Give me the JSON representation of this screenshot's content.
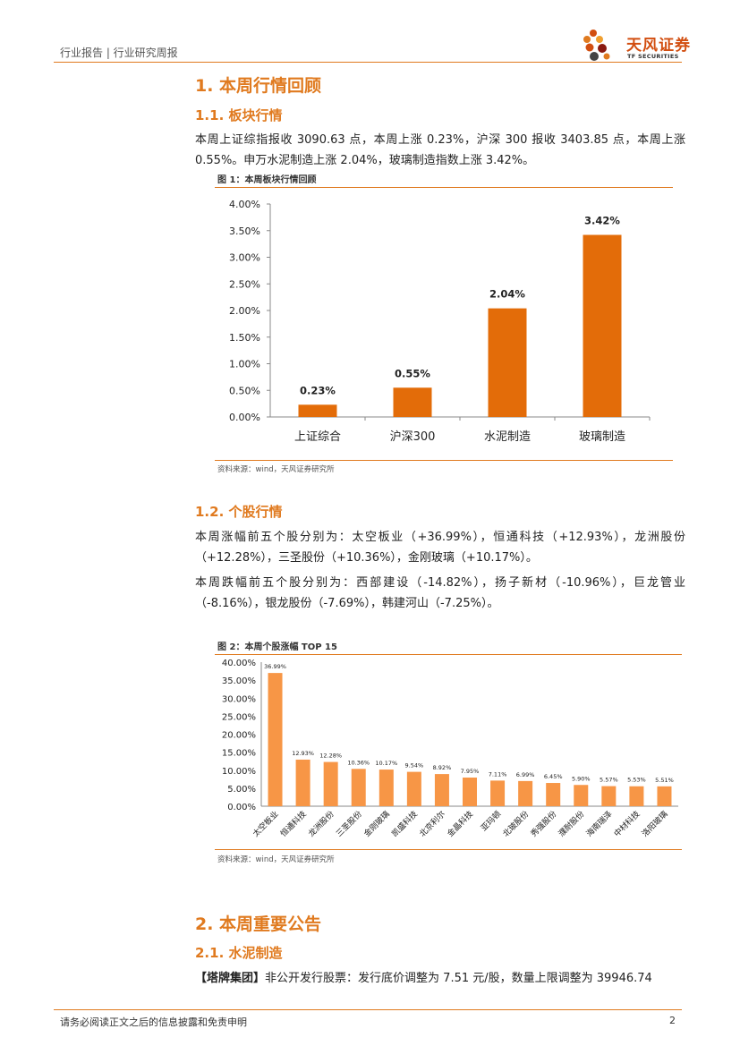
{
  "header": {
    "left": "行业报告 | 行业研究周报",
    "logo_cn": "天风证券",
    "logo_en": "TF SECURITIES"
  },
  "section1": {
    "title": "1. 本周行情回顾",
    "sub1_title": "1.1. 板块行情",
    "sub1_text": "本周上证综指报收 3090.63 点，本周上涨 0.23%，沪深 300 报收 3403.85 点，本周上涨 0.55%。申万水泥制造上涨 2.04%，玻璃制造指数上涨 3.42%。",
    "fig1_title": "图 1：本周板块行情回顾",
    "fig1_source": "资料来源：wind，天风证券研究所",
    "sub2_title": "1.2. 个股行情",
    "sub2_text_a": "本周涨幅前五个股分别为：太空板业（+36.99%），恒通科技（+12.93%），龙洲股份（+12.28%），三圣股份（+10.36%），金刚玻璃（+10.17%）。",
    "sub2_text_b": "本周跌幅前五个股分别为：西部建设（-14.82%），扬子新材（-10.96%），巨龙管业（-8.16%），银龙股份（-7.69%），韩建河山（-7.25%）。",
    "fig2_title": "图 2：本周个股涨幅 TOP 15",
    "fig2_source": "资料来源：wind，天风证券研究所"
  },
  "section2": {
    "title": "2. 本周重要公告",
    "sub1_title": "2.1. 水泥制造",
    "ann_bracket_open": "【",
    "ann_company": "塔牌集团",
    "ann_bracket_close": "】",
    "ann_text": "非公开发行股票：发行底价调整为 7.51 元/股，数量上限调整为 39946.74"
  },
  "footer": {
    "disclaimer": "请务必阅读正文之后的信息披露和免责申明",
    "page": "2"
  },
  "colors": {
    "accent": "#E07A1F",
    "bar1": "#E36C09",
    "bar2": "#F79646"
  },
  "chart_data": [
    {
      "type": "bar",
      "title": "本周板块行情回顾",
      "categories": [
        "上证综合",
        "沪深300",
        "水泥制造",
        "玻璃制造"
      ],
      "values": [
        0.23,
        0.55,
        2.04,
        3.42
      ],
      "value_labels": [
        "0.23%",
        "0.55%",
        "2.04%",
        "3.42%"
      ],
      "yticks": [
        "0.00%",
        "0.50%",
        "1.00%",
        "1.50%",
        "2.00%",
        "2.50%",
        "3.00%",
        "3.50%",
        "4.00%"
      ],
      "ylim": [
        0,
        4
      ],
      "xlabel": "",
      "ylabel": ""
    },
    {
      "type": "bar",
      "title": "本周个股涨幅 TOP 15",
      "categories": [
        "太空板业",
        "恒通科技",
        "龙洲股份",
        "三圣股份",
        "金刚玻璃",
        "凯盛科技",
        "北京利尔",
        "金晶科技",
        "亚玛顿",
        "北玻股份",
        "秀强股份",
        "濮耐股份",
        "海南瑞泽",
        "中材科技",
        "洛阳玻璃"
      ],
      "values": [
        36.99,
        12.93,
        12.28,
        10.36,
        10.17,
        9.54,
        8.92,
        7.95,
        7.11,
        6.99,
        6.45,
        5.9,
        5.57,
        5.53,
        5.51
      ],
      "value_labels": [
        "36.99%",
        "12.93%",
        "12.28%",
        "10.36%",
        "10.17%",
        "9.54%",
        "8.92%",
        "7.95%",
        "7.11%",
        "6.99%",
        "6.45%",
        "5.90%",
        "5.57%",
        "5.53%",
        "5.51%"
      ],
      "yticks": [
        "0.00%",
        "5.00%",
        "10.00%",
        "15.00%",
        "20.00%",
        "25.00%",
        "30.00%",
        "35.00%",
        "40.00%"
      ],
      "ylim": [
        0,
        40
      ],
      "xlabel": "",
      "ylabel": ""
    }
  ]
}
